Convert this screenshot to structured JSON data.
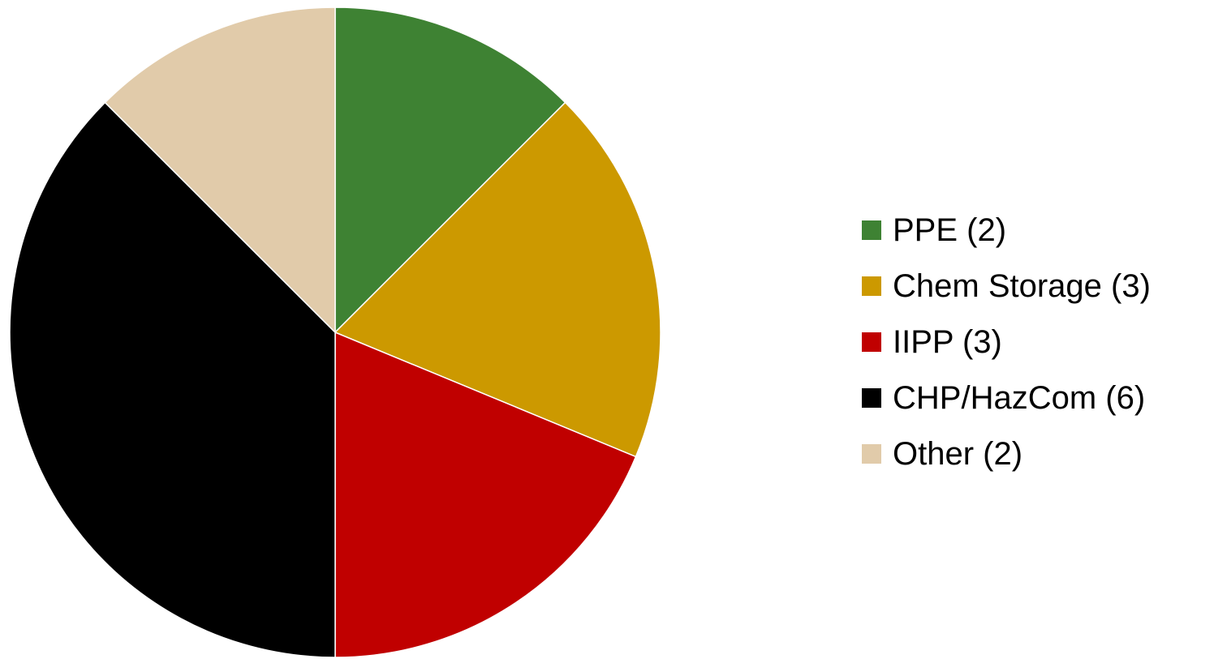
{
  "chart_data": {
    "type": "pie",
    "title": "",
    "start_angle": "12 o'clock",
    "direction": "clockwise",
    "legend_position": "right",
    "slices": [
      {
        "label": "PPE (2)",
        "name": "PPE",
        "value": 2,
        "color": "#3e8233"
      },
      {
        "label": "Chem Storage (3)",
        "name": "Chem Storage",
        "value": 3,
        "color": "#cc9900"
      },
      {
        "label": "IIPP (3)",
        "name": "IIPP",
        "value": 3,
        "color": "#c00000"
      },
      {
        "label": "CHP/HazCom (6)",
        "name": "CHP/HazCom",
        "value": 6,
        "color": "#000000"
      },
      {
        "label": "Other (2)",
        "name": "Other",
        "value": 2,
        "color": "#e1cbaa"
      }
    ]
  }
}
